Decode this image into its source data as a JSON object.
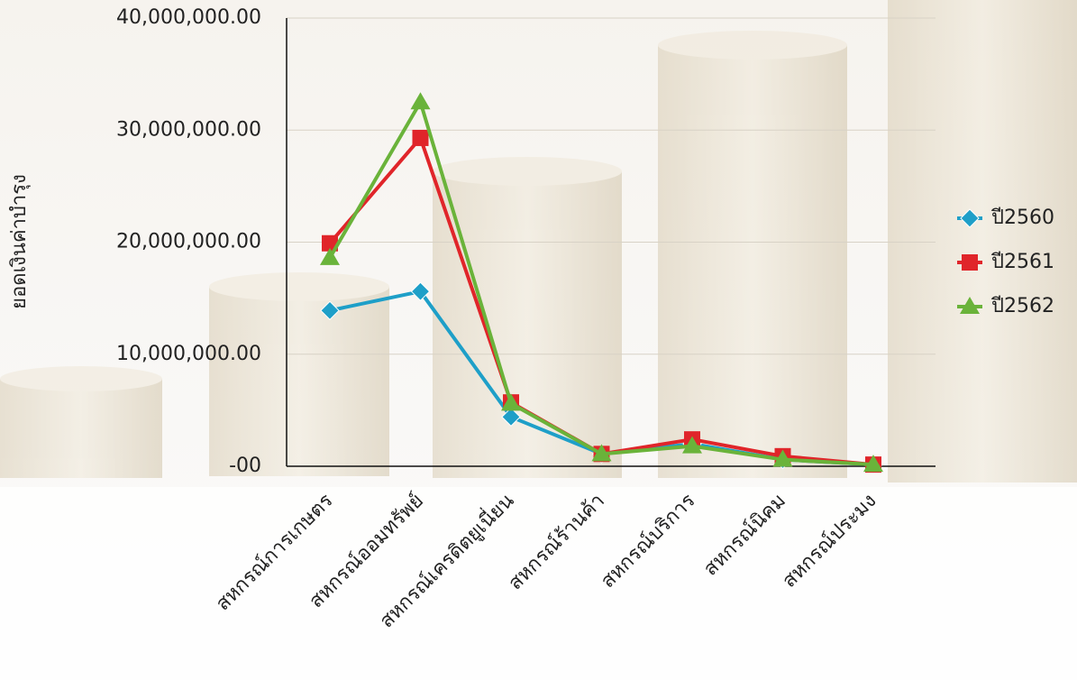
{
  "chart_data": {
    "type": "line",
    "y_label": "ยอดเงินค่าบำรุง",
    "categories": [
      "สหกรณ์การเกษตร",
      "สหกรณ์ออมทรัพย์",
      "สหกรณ์เครดิตยูเนี่ยน",
      "สหกรณ์ร้านค้า",
      "สหกรณ์บริการ",
      "สหกรณ์นิคม",
      "สหกรณ์ประมง"
    ],
    "series": [
      {
        "name": "ปี2560",
        "color": "#1e9fc8",
        "marker": "diamond",
        "values": [
          13900000,
          15600000,
          4400000,
          1100000,
          2000000,
          600000,
          150000
        ]
      },
      {
        "name": "ปี2561",
        "color": "#e0252a",
        "marker": "square",
        "values": [
          19900000,
          29300000,
          5700000,
          1100000,
          2400000,
          900000,
          150000
        ]
      },
      {
        "name": "ปี2562",
        "color": "#6ab33a",
        "marker": "triangle",
        "values": [
          18600000,
          32500000,
          5600000,
          1100000,
          1800000,
          600000,
          150000
        ]
      }
    ],
    "ylim": [
      0,
      40000000
    ],
    "yticks": [
      {
        "value": 0,
        "label": "-00"
      },
      {
        "value": 10000000,
        "label": "10,000,000.00"
      },
      {
        "value": 20000000,
        "label": "20,000,000.00"
      },
      {
        "value": 30000000,
        "label": "30,000,000.00"
      },
      {
        "value": 40000000,
        "label": "40,000,000.00"
      }
    ],
    "grid": true,
    "legend": "right"
  }
}
